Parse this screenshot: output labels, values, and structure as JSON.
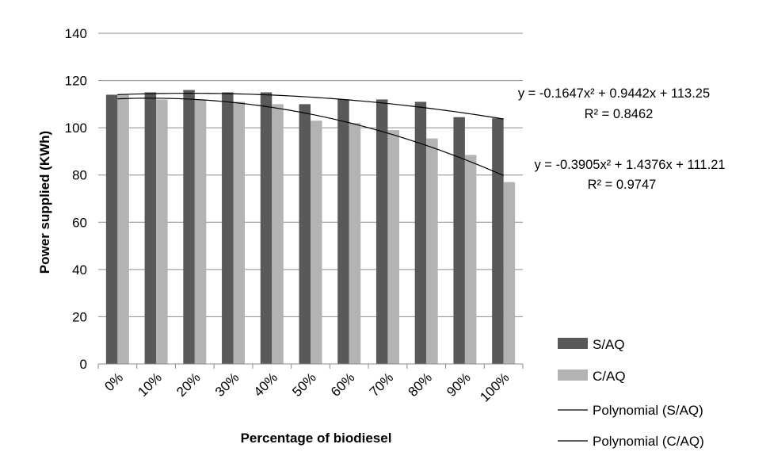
{
  "chart_data": {
    "type": "bar",
    "title": "",
    "xlabel": "Percentage of biodiesel",
    "ylabel": "Power supplied (KWh)",
    "ylim": [
      0,
      140
    ],
    "yticks": [
      0,
      20,
      40,
      60,
      80,
      100,
      120,
      140
    ],
    "grid": true,
    "legend_position": "bottom-right",
    "categories": [
      "0%",
      "10%",
      "20%",
      "30%",
      "40%",
      "50%",
      "60%",
      "70%",
      "80%",
      "90%",
      "100%"
    ],
    "series": [
      {
        "name": "S/AQ",
        "color": "#595959",
        "values": [
          114,
          115,
          116,
          115,
          115,
          110,
          112,
          112,
          111,
          104.5,
          104
        ]
      },
      {
        "name": "C/AQ",
        "color": "#b3b3b3",
        "values": [
          114,
          112,
          112,
          111,
          110,
          103,
          102,
          99,
          95.5,
          88.5,
          77
        ]
      }
    ],
    "trendlines": [
      {
        "name": "Polynomial (S/AQ)",
        "type": "polynomial",
        "coefficients": [
          -0.1647,
          0.9442,
          113.25
        ],
        "equation": "y = -0.1647x² + 0.9442x + 113.25",
        "r2": "R² = 0.8462",
        "color": "#000000"
      },
      {
        "name": "Polynomial (C/AQ)",
        "type": "polynomial",
        "coefficients": [
          -0.3905,
          1.4376,
          111.21
        ],
        "equation": "y = -0.3905x² + 1.4376x + 111.21",
        "r2": "R² = 0.9747",
        "color": "#000000"
      }
    ],
    "annotations": [
      "y = -0.1647x² + 0.9442x + 113.25",
      "R² = 0.8462",
      "y = -0.3905x² + 1.4376x + 111.21",
      "R² = 0.9747"
    ]
  }
}
